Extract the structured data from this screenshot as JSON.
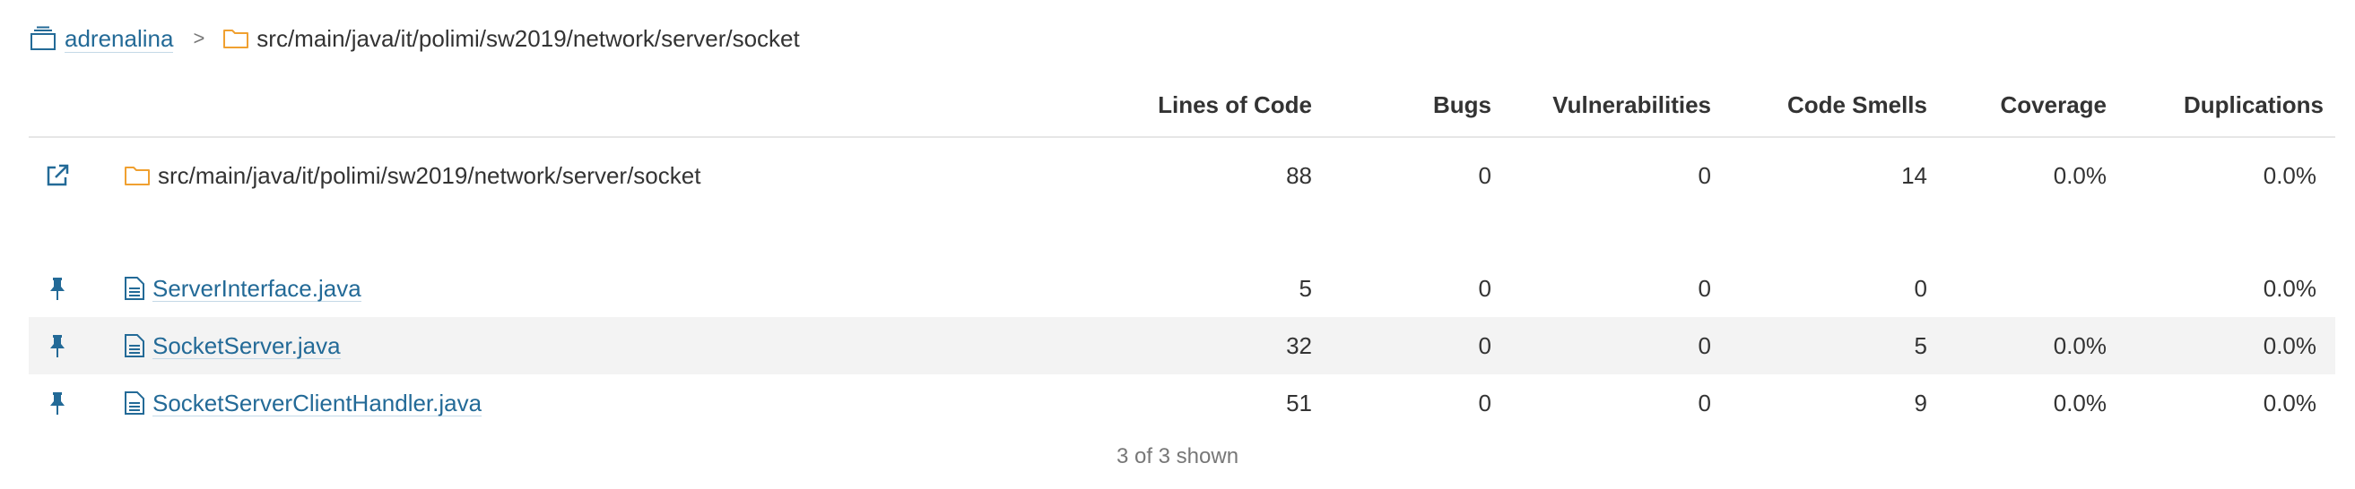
{
  "breadcrumb": {
    "project": "adrenalina",
    "separator": ">",
    "path": "src/main/java/it/polimi/sw2019/network/server/socket"
  },
  "columns": {
    "loc": "Lines of Code",
    "bugs": "Bugs",
    "vulnerabilities": "Vulnerabilities",
    "code_smells": "Code Smells",
    "coverage": "Coverage",
    "duplications": "Duplications"
  },
  "directory_row": {
    "name": "src/main/java/it/polimi/sw2019/network/server/socket",
    "loc": "88",
    "bugs": "0",
    "vulnerabilities": "0",
    "code_smells": "14",
    "coverage": "0.0%",
    "duplications": "0.0%"
  },
  "files": [
    {
      "name": "ServerInterface.java",
      "loc": "5",
      "bugs": "0",
      "vulnerabilities": "0",
      "code_smells": "0",
      "coverage": "",
      "duplications": "0.0%"
    },
    {
      "name": "SocketServer.java",
      "loc": "32",
      "bugs": "0",
      "vulnerabilities": "0",
      "code_smells": "5",
      "coverage": "0.0%",
      "duplications": "0.0%"
    },
    {
      "name": "SocketServerClientHandler.java",
      "loc": "51",
      "bugs": "0",
      "vulnerabilities": "0",
      "code_smells": "9",
      "coverage": "0.0%",
      "duplications": "0.0%"
    }
  ],
  "footer": {
    "shown": "3 of 3 shown"
  },
  "icons": {
    "project": "project-icon",
    "folder": "folder-icon",
    "open": "open-external-icon",
    "pin": "pin-icon",
    "file": "file-icon"
  },
  "colors": {
    "link": "#236a97",
    "folder": "#f0a030",
    "icon": "#236a97",
    "row_alt": "#f3f3f3"
  }
}
